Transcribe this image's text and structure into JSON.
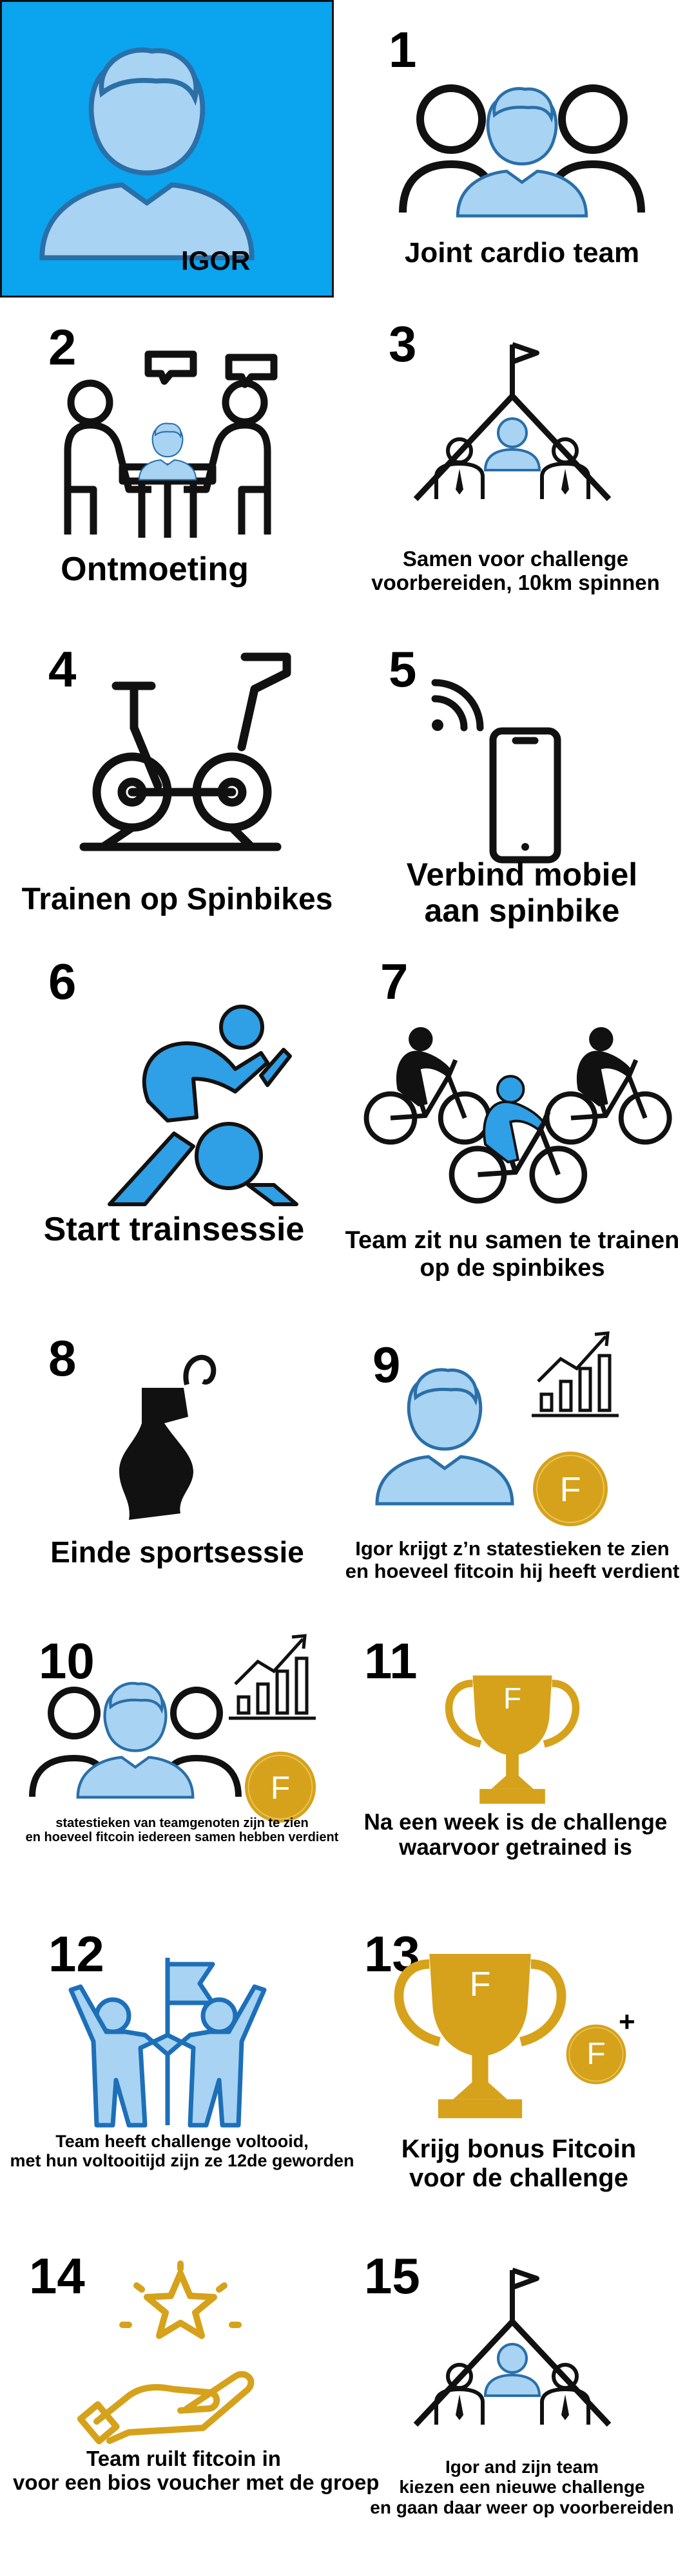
{
  "profile": {
    "name": "IGOR"
  },
  "colors": {
    "blue": "#0aa4ef",
    "light_blue": "#a9d3f3",
    "icon_blue": "#2f9fe6",
    "gold": "#d6a21b",
    "black": "#111111"
  },
  "steps": [
    {
      "number": "1",
      "caption": "Joint cardio team",
      "icon": "team-icon"
    },
    {
      "number": "2",
      "caption": "Ontmoeting",
      "icon": "meeting-icon"
    },
    {
      "number": "3",
      "caption_lines": [
        "Samen voor challenge",
        "voorbereiden, 10km spinnen"
      ],
      "icon": "mountain-team-icon"
    },
    {
      "number": "4",
      "caption": "Trainen op Spinbikes",
      "icon": "spinbike-icon"
    },
    {
      "number": "5",
      "caption_lines": [
        "Verbind mobiel",
        "aan spinbike"
      ],
      "icon": "phone-wifi-icon"
    },
    {
      "number": "6",
      "caption": "Start trainsessie",
      "icon": "cyclist-icon"
    },
    {
      "number": "7",
      "caption_lines": [
        "Team zit nu samen te trainen",
        "op de spinbikes"
      ],
      "icon": "group-cyclists-icon"
    },
    {
      "number": "8",
      "caption": "Einde sportsessie",
      "icon": "water-bottle-icon"
    },
    {
      "number": "9",
      "caption_lines": [
        "Igor krijgt z’n statestieken te zien",
        "en hoeveel fitcoin hij heeft verdient"
      ],
      "icon": "stats-coin-icon"
    },
    {
      "number": "10",
      "caption_lines": [
        "statestieken van teamgenoten zijn te zien",
        "en hoeveel fitcoin iedereen samen hebben verdient"
      ],
      "icon": "team-stats-icon"
    },
    {
      "number": "11",
      "caption_lines": [
        "Na een week is de challenge",
        "waarvoor getrained is"
      ],
      "icon": "trophy-icon"
    },
    {
      "number": "12",
      "caption_lines": [
        "Team heeft challenge voltooid,",
        "met hun voltooitijd zijn ze 12de geworden"
      ],
      "icon": "celebration-flag-icon"
    },
    {
      "number": "13",
      "caption_lines": [
        "Krijg bonus Fitcoin",
        "voor de challenge"
      ],
      "icon": "trophy-bonus-icon"
    },
    {
      "number": "14",
      "caption_lines": [
        "Team ruilt fitcoin in",
        "voor een bios voucher met de groep"
      ],
      "icon": "hand-star-icon"
    },
    {
      "number": "15",
      "caption_lines": [
        "Igor and zijn team",
        "kiezen een nieuwe challenge",
        "en gaan daar weer op voorbereiden"
      ],
      "icon": "mountain-team-icon"
    }
  ],
  "coin_letter": "F",
  "coin_plus": "+"
}
